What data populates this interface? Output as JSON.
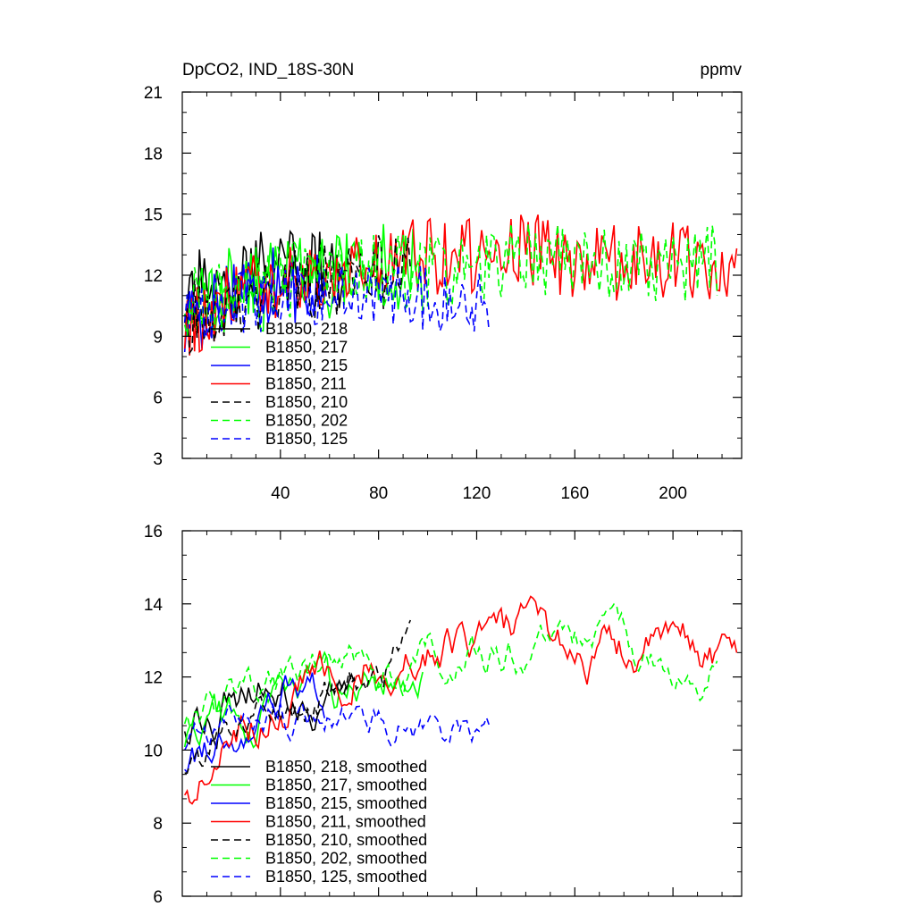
{
  "chart_data": [
    {
      "type": "line",
      "title_left": "DpCO2, IND_18S-30N",
      "title_right": "ppmv",
      "ylim": [
        3,
        21
      ],
      "yticks": [
        "3",
        "6",
        "9",
        "12",
        "15",
        "18",
        "21"
      ],
      "xlim": [
        0,
        228
      ],
      "xticks": [
        "40",
        "80",
        "120",
        "160",
        "200"
      ],
      "legend_position": "lower-left",
      "series": [
        {
          "name": "B1850, 218",
          "color": "#000000",
          "dash": "solid",
          "length": 70,
          "base": [
            11.2,
            11.6,
            12.3,
            12.6,
            11.2
          ],
          "amp": 2.0,
          "seed": 11
        },
        {
          "name": "B1850, 217",
          "color": "#00ff00",
          "dash": "solid",
          "length": 98,
          "base": [
            10.8,
            11.3,
            11.8,
            12.4,
            12.2
          ],
          "amp": 2.2,
          "seed": 23
        },
        {
          "name": "B1850, 215",
          "color": "#0000ff",
          "dash": "solid",
          "length": 58,
          "base": [
            9.8,
            10.6,
            11.2,
            11.6,
            11.0
          ],
          "amp": 2.0,
          "seed": 37
        },
        {
          "name": "B1850, 211",
          "color": "#ff0000",
          "dash": "solid",
          "length": 226,
          "base": [
            9.6,
            11.2,
            12.4,
            12.8,
            13.0,
            13.2,
            12.6,
            12.8,
            12.4
          ],
          "amp": 1.9,
          "seed": 41
        },
        {
          "name": "B1850, 210",
          "color": "#000000",
          "dash": "dashed",
          "length": 93,
          "base": [
            10.0,
            10.6,
            11.4,
            12.0,
            12.4
          ],
          "amp": 1.9,
          "seed": 53
        },
        {
          "name": "B1850, 202",
          "color": "#00ff00",
          "dash": "dashed",
          "length": 218,
          "base": [
            10.8,
            11.6,
            12.0,
            12.2,
            12.4,
            12.8,
            13.0,
            12.4,
            12.6
          ],
          "amp": 1.9,
          "seed": 67
        },
        {
          "name": "B1850, 125",
          "color": "#0000ff",
          "dash": "dashed",
          "length": 125,
          "base": [
            10.0,
            10.6,
            11.0,
            11.2,
            10.8,
            10.6
          ],
          "amp": 1.6,
          "seed": 79
        }
      ]
    },
    {
      "type": "line",
      "ylim": [
        6,
        16
      ],
      "yticks": [
        "6",
        "8",
        "10",
        "12",
        "14",
        "16"
      ],
      "xlim": [
        0,
        228
      ],
      "legend_position": "lower-left",
      "series": [
        {
          "name": "B1850, 218, smoothed",
          "color": "#000000",
          "dash": "solid",
          "length": 70,
          "base": [
            10.2,
            11.4,
            12.2,
            11.6,
            11.8
          ],
          "amp": 0.9,
          "seed": 12
        },
        {
          "name": "B1850, 217, smoothed",
          "color": "#00ff00",
          "dash": "solid",
          "length": 98,
          "base": [
            10.4,
            10.4,
            11.0,
            11.6,
            12.2
          ],
          "amp": 0.9,
          "seed": 24
        },
        {
          "name": "B1850, 215, smoothed",
          "color": "#0000ff",
          "dash": "solid",
          "length": 58,
          "base": [
            9.2,
            10.2,
            11.0,
            11.8,
            11.2
          ],
          "amp": 0.8,
          "seed": 38
        },
        {
          "name": "B1850, 211, smoothed",
          "color": "#ff0000",
          "dash": "solid",
          "length": 226,
          "base": [
            8.4,
            10.8,
            12.0,
            12.8,
            13.0,
            13.0,
            12.6,
            12.8,
            12.6
          ],
          "amp": 0.9,
          "seed": 42
        },
        {
          "name": "B1850, 210, smoothed",
          "color": "#000000",
          "dash": "dashed",
          "length": 93,
          "base": [
            9.6,
            10.4,
            11.4,
            12.2,
            12.6
          ],
          "amp": 0.8,
          "seed": 54
        },
        {
          "name": "B1850, 202, smoothed",
          "color": "#00ff00",
          "dash": "dashed",
          "length": 218,
          "base": [
            10.4,
            11.2,
            12.0,
            12.2,
            12.4,
            12.6,
            13.0,
            12.4,
            12.4
          ],
          "amp": 0.8,
          "seed": 68
        },
        {
          "name": "B1850, 125, smoothed",
          "color": "#0000ff",
          "dash": "dashed",
          "length": 125,
          "base": [
            10.2,
            10.8,
            10.8,
            10.8,
            10.8,
            10.4
          ],
          "amp": 0.7,
          "seed": 80
        }
      ]
    }
  ]
}
